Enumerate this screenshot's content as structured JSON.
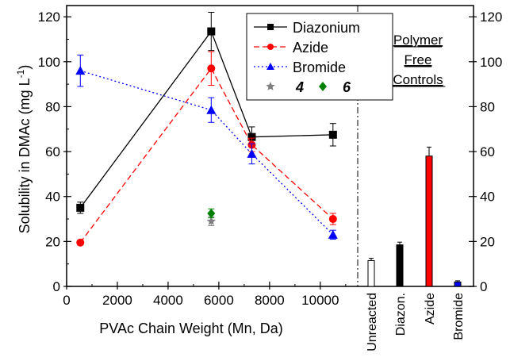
{
  "chart_data": {
    "type": "line",
    "xlabel": "PVAc Chain Weight (Mn, Da)",
    "ylabel": "Solubility in DMAc (mg L",
    "ylabel_sup": "-1",
    "ylabel_close": ")",
    "xlim": [
      0,
      11600
    ],
    "ylim": [
      0,
      125
    ],
    "xticks": [
      0,
      2000,
      4000,
      6000,
      8000,
      10000
    ],
    "yticks": [
      0,
      20,
      40,
      60,
      80,
      100,
      120
    ],
    "grid": false,
    "legend_position": "top-right",
    "series": [
      {
        "name": "Diazonium",
        "color": "#000000",
        "marker": "square",
        "line": "solid",
        "x": [
          540,
          5700,
          7300,
          10500
        ],
        "y": [
          35,
          113.5,
          66.5,
          67.5
        ],
        "err": [
          2.5,
          8.5,
          4.5,
          5
        ]
      },
      {
        "name": "Azide",
        "color": "#ff0000",
        "marker": "circle",
        "line": "dashed",
        "x": [
          540,
          5700,
          7300,
          10500
        ],
        "y": [
          19.5,
          97,
          63,
          30
        ],
        "err": [
          1,
          7.5,
          3,
          2.5
        ]
      },
      {
        "name": "Bromide",
        "color": "#0000ff",
        "marker": "triangle",
        "line": "dotted",
        "x": [
          540,
          5700,
          7300,
          10500
        ],
        "y": [
          96,
          78.5,
          59,
          23
        ],
        "err": [
          7,
          5.5,
          4.5,
          2
        ]
      }
    ],
    "extra_points": [
      {
        "name": "4",
        "color": "#808080",
        "marker": "star",
        "x": 5700,
        "y": 29,
        "err": 2
      },
      {
        "name": "6",
        "color": "#008000",
        "marker": "diamond",
        "x": 5700,
        "y": 32.5,
        "err": 2
      }
    ],
    "controls": {
      "title_lines": [
        "Polymer",
        "Free",
        "Controls"
      ],
      "categories": [
        "Unreacted",
        "Diazon.",
        "Azide",
        "Bromide"
      ],
      "values": [
        11.5,
        18.5,
        58,
        2
      ],
      "errors": [
        1,
        1.2,
        4,
        0.5
      ],
      "colors": [
        "#ffffff",
        "#000000",
        "#ff0000",
        "#0000ff"
      ],
      "yticks": [
        0,
        20,
        40,
        60,
        80,
        100,
        120
      ]
    }
  }
}
